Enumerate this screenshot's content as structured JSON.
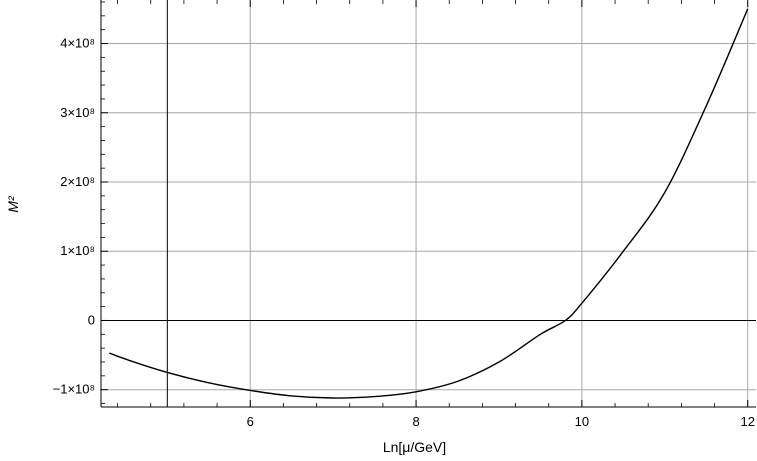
{
  "chart_data": {
    "type": "line",
    "xlabel": "Ln[μ/GeV]",
    "ylabel": "M²",
    "xlim": [
      4.2,
      12.1
    ],
    "ylim": [
      -125000000,
      460000000
    ],
    "grid": true,
    "x_ticks": [
      {
        "value": 6,
        "label": "6"
      },
      {
        "value": 8,
        "label": "8"
      },
      {
        "value": 10,
        "label": "10"
      },
      {
        "value": 12,
        "label": "12"
      }
    ],
    "y_ticks": [
      {
        "value": -100000000,
        "label": "−1×10⁸"
      },
      {
        "value": 0,
        "label": "0"
      },
      {
        "value": 100000000,
        "label": "1×10⁸"
      },
      {
        "value": 200000000,
        "label": "2×10⁸"
      },
      {
        "value": 300000000,
        "label": "3×10⁸"
      },
      {
        "value": 400000000,
        "label": "4×10⁸"
      }
    ],
    "reference_lines": {
      "x": 5,
      "y": 0
    },
    "series": [
      {
        "values": [
          {
            "x": 4.3,
            "y": -47000000
          },
          {
            "x": 4.5,
            "y": -56000000
          },
          {
            "x": 5.0,
            "y": -75000000
          },
          {
            "x": 5.5,
            "y": -90000000
          },
          {
            "x": 6.0,
            "y": -101000000
          },
          {
            "x": 6.5,
            "y": -109000000
          },
          {
            "x": 7.0,
            "y": -112000000
          },
          {
            "x": 7.5,
            "y": -110000000
          },
          {
            "x": 8.0,
            "y": -103000000
          },
          {
            "x": 8.5,
            "y": -88000000
          },
          {
            "x": 9.0,
            "y": -60000000
          },
          {
            "x": 9.5,
            "y": -20000000
          },
          {
            "x": 9.8,
            "y": 0
          },
          {
            "x": 10.0,
            "y": 25000000
          },
          {
            "x": 10.5,
            "y": 100000000
          },
          {
            "x": 11.0,
            "y": 185000000
          },
          {
            "x": 11.5,
            "y": 310000000
          },
          {
            "x": 12.0,
            "y": 450000000
          }
        ]
      }
    ]
  }
}
